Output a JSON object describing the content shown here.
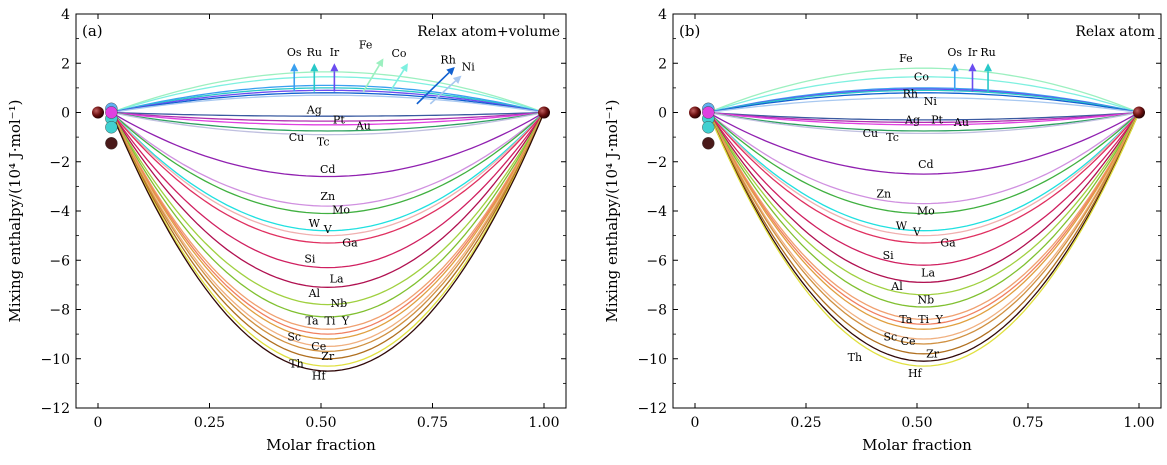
{
  "chart_data": [
    {
      "type": "line",
      "panel_label": "(a)",
      "annotation": "Relax atom+volume",
      "xlabel": "Molar fraction",
      "ylabel": "Mixing enthalpy/(10⁴ J·mol⁻¹)",
      "xlim": [
        0,
        1
      ],
      "ylim": [
        -12,
        4
      ],
      "xticks": [
        "0",
        "0.25",
        "0.50",
        "0.75",
        "1.00"
      ],
      "yticks": [
        "−12",
        "−10",
        "−8",
        "−6",
        "−4",
        "−2",
        "0",
        "2",
        "4"
      ],
      "grid": false,
      "series": [
        {
          "name": "Fe",
          "min": 1.65,
          "color": "#9cf0c0"
        },
        {
          "name": "Co",
          "min": 1.45,
          "color": "#7ef0e0"
        },
        {
          "name": "Os",
          "min": 1.1,
          "color": "#3aa0f0"
        },
        {
          "name": "Ru",
          "min": 1.0,
          "color": "#28c8c8"
        },
        {
          "name": "Ir",
          "min": 0.9,
          "color": "#6a4cf0"
        },
        {
          "name": "Rh",
          "min": 0.8,
          "color": "#1060d0"
        },
        {
          "name": "Ni",
          "min": 0.7,
          "color": "#a8c8f0"
        },
        {
          "name": "Ag",
          "min": -0.15,
          "color": "#3a5aa0"
        },
        {
          "name": "Pt",
          "min": -0.35,
          "color": "#b030b0"
        },
        {
          "name": "Au",
          "min": -0.5,
          "color": "#e040e0"
        },
        {
          "name": "Cu",
          "min": -0.75,
          "color": "#2ea060"
        },
        {
          "name": "Tc",
          "min": -0.9,
          "color": "#c0c0e0"
        },
        {
          "name": "Cd",
          "min": -2.6,
          "color": "#9020b0"
        },
        {
          "name": "Zn",
          "min": -3.8,
          "color": "#d090e0"
        },
        {
          "name": "Mo",
          "min": -4.1,
          "color": "#40b040"
        },
        {
          "name": "W",
          "min": -4.8,
          "color": "#20e0e0"
        },
        {
          "name": "V",
          "min": -5.0,
          "color": "#f0b0b0"
        },
        {
          "name": "Ga",
          "min": -5.3,
          "color": "#e03060"
        },
        {
          "name": "Si",
          "min": -6.3,
          "color": "#d02060"
        },
        {
          "name": "La",
          "min": -7.1,
          "color": "#b01050"
        },
        {
          "name": "Al",
          "min": -7.8,
          "color": "#a0d040"
        },
        {
          "name": "Nb",
          "min": -8.3,
          "color": "#80c030"
        },
        {
          "name": "Ta",
          "min": -8.8,
          "color": "#f0a070"
        },
        {
          "name": "Ti",
          "min": -9.0,
          "color": "#f08060"
        },
        {
          "name": "Y",
          "min": -9.2,
          "color": "#e0a040"
        },
        {
          "name": "Sc",
          "min": -9.5,
          "color": "#f0b080"
        },
        {
          "name": "Ce",
          "min": -9.7,
          "color": "#d09040"
        },
        {
          "name": "Zr",
          "min": -10.0,
          "color": "#b07020"
        },
        {
          "name": "Th",
          "min": -10.3,
          "color": "#e0e040"
        },
        {
          "name": "Hf",
          "min": -10.5,
          "color": "#300808"
        }
      ],
      "labels": [
        {
          "text": "Os",
          "x": 0.44,
          "y": 2.3
        },
        {
          "text": "Ru",
          "x": 0.485,
          "y": 2.3
        },
        {
          "text": "Ir",
          "x": 0.53,
          "y": 2.3
        },
        {
          "text": "Fe",
          "x": 0.6,
          "y": 2.6
        },
        {
          "text": "Co",
          "x": 0.675,
          "y": 2.25
        },
        {
          "text": "Rh",
          "x": 0.785,
          "y": 2.0
        },
        {
          "text": "Ni",
          "x": 0.83,
          "y": 1.7
        },
        {
          "text": "Ag",
          "x": 0.485,
          "y": -0.05
        },
        {
          "text": "Pt",
          "x": 0.54,
          "y": -0.45
        },
        {
          "text": "Au",
          "x": 0.595,
          "y": -0.7
        },
        {
          "text": "Cu",
          "x": 0.445,
          "y": -1.15
        },
        {
          "text": "Tc",
          "x": 0.505,
          "y": -1.35
        },
        {
          "text": "Cd",
          "x": 0.515,
          "y": -2.45
        },
        {
          "text": "Zn",
          "x": 0.515,
          "y": -3.55
        },
        {
          "text": "Mo",
          "x": 0.545,
          "y": -4.1
        },
        {
          "text": "W",
          "x": 0.485,
          "y": -4.65
        },
        {
          "text": "V",
          "x": 0.515,
          "y": -4.9
        },
        {
          "text": "Ga",
          "x": 0.565,
          "y": -5.45
        },
        {
          "text": "Si",
          "x": 0.475,
          "y": -6.1
        },
        {
          "text": "La",
          "x": 0.535,
          "y": -6.9
        },
        {
          "text": "Al",
          "x": 0.485,
          "y": -7.5
        },
        {
          "text": "Nb",
          "x": 0.54,
          "y": -7.9
        },
        {
          "text": "Ta",
          "x": 0.48,
          "y": -8.6
        },
        {
          "text": "Ti",
          "x": 0.52,
          "y": -8.6
        },
        {
          "text": "Y",
          "x": 0.555,
          "y": -8.6
        },
        {
          "text": "Sc",
          "x": 0.44,
          "y": -9.25
        },
        {
          "text": "Ce",
          "x": 0.495,
          "y": -9.65
        },
        {
          "text": "Zr",
          "x": 0.515,
          "y": -10.05
        },
        {
          "text": "Th",
          "x": 0.445,
          "y": -10.35
        },
        {
          "text": "Hf",
          "x": 0.495,
          "y": -10.85
        }
      ],
      "arrows": [
        {
          "x": 0.44,
          "y0": 0.85,
          "y1": 2.0,
          "color": "#3aa0f0"
        },
        {
          "x": 0.485,
          "y0": 0.85,
          "y1": 2.0,
          "color": "#28c8c8"
        },
        {
          "x": 0.53,
          "y0": 0.85,
          "y1": 2.0,
          "color": "#6a4cf0"
        },
        {
          "x0": 0.595,
          "y0": 0.85,
          "x1": 0.64,
          "y1": 2.2,
          "color": "#9cf0c0"
        },
        {
          "x0": 0.655,
          "y0": 0.85,
          "x1": 0.695,
          "y1": 2.0,
          "color": "#7ef0e0"
        },
        {
          "x0": 0.715,
          "y0": 0.35,
          "x1": 0.8,
          "y1": 1.85,
          "color": "#1060d0"
        },
        {
          "x0": 0.745,
          "y0": 0.35,
          "x1": 0.815,
          "y1": 1.5,
          "color": "#a8c8f0"
        }
      ]
    },
    {
      "type": "line",
      "panel_label": "(b)",
      "annotation": "Relax atom",
      "xlabel": "Molar fraction",
      "ylabel": "Mixing enthalpy/(10⁴ J·mol⁻¹)",
      "xlim": [
        0,
        1
      ],
      "ylim": [
        -12,
        4
      ],
      "xticks": [
        "0",
        "0.25",
        "0.50",
        "0.75",
        "1.00"
      ],
      "yticks": [
        "−12",
        "−10",
        "−8",
        "−6",
        "−4",
        "−2",
        "0",
        "2",
        "4"
      ],
      "grid": false,
      "series": [
        {
          "name": "Fe",
          "min": 1.8,
          "color": "#9cf0c0"
        },
        {
          "name": "Co",
          "min": 1.45,
          "color": "#7ef0e0"
        },
        {
          "name": "Os",
          "min": 1.0,
          "color": "#3aa0f0"
        },
        {
          "name": "Ir",
          "min": 0.95,
          "color": "#6a4cf0"
        },
        {
          "name": "Ru",
          "min": 0.9,
          "color": "#28c8c8"
        },
        {
          "name": "Rh",
          "min": 0.8,
          "color": "#1060d0"
        },
        {
          "name": "Ni",
          "min": 0.6,
          "color": "#a8c8f0"
        },
        {
          "name": "Ag",
          "min": -0.3,
          "color": "#3a5aa0"
        },
        {
          "name": "Pt",
          "min": -0.4,
          "color": "#b030b0"
        },
        {
          "name": "Au",
          "min": -0.5,
          "color": "#e040e0"
        },
        {
          "name": "Cu",
          "min": -0.75,
          "color": "#2ea060"
        },
        {
          "name": "Tc",
          "min": -0.85,
          "color": "#c0c0e0"
        },
        {
          "name": "Cd",
          "min": -2.5,
          "color": "#9020b0"
        },
        {
          "name": "Zn",
          "min": -3.7,
          "color": "#d090e0"
        },
        {
          "name": "Mo",
          "min": -4.1,
          "color": "#40b040"
        },
        {
          "name": "W",
          "min": -4.8,
          "color": "#20e0e0"
        },
        {
          "name": "V",
          "min": -5.0,
          "color": "#f0b0b0"
        },
        {
          "name": "Ga",
          "min": -5.3,
          "color": "#e03060"
        },
        {
          "name": "Si",
          "min": -6.2,
          "color": "#d02060"
        },
        {
          "name": "La",
          "min": -6.9,
          "color": "#b01050"
        },
        {
          "name": "Al",
          "min": -7.4,
          "color": "#a0d040"
        },
        {
          "name": "Nb",
          "min": -7.9,
          "color": "#80c030"
        },
        {
          "name": "Ta",
          "min": -8.4,
          "color": "#f0a070"
        },
        {
          "name": "Ti",
          "min": -8.6,
          "color": "#f08060"
        },
        {
          "name": "Y",
          "min": -8.8,
          "color": "#e0a040"
        },
        {
          "name": "Sc",
          "min": -9.2,
          "color": "#f0b080"
        },
        {
          "name": "Ce",
          "min": -9.4,
          "color": "#d09040"
        },
        {
          "name": "Zr",
          "min": -9.8,
          "color": "#b07020"
        },
        {
          "name": "Th",
          "min": -10.1,
          "color": "#300808"
        },
        {
          "name": "Hf",
          "min": -10.3,
          "color": "#e0e040"
        }
      ],
      "labels": [
        {
          "text": "Fe",
          "x": 0.475,
          "y": 2.05
        },
        {
          "text": "Co",
          "x": 0.51,
          "y": 1.3
        },
        {
          "text": "Os",
          "x": 0.585,
          "y": 2.3
        },
        {
          "text": "Ir",
          "x": 0.625,
          "y": 2.3
        },
        {
          "text": "Ru",
          "x": 0.66,
          "y": 2.3
        },
        {
          "text": "Rh",
          "x": 0.485,
          "y": 0.6
        },
        {
          "text": "Ni",
          "x": 0.53,
          "y": 0.3
        },
        {
          "text": "Ag",
          "x": 0.49,
          "y": -0.45
        },
        {
          "text": "Pt",
          "x": 0.545,
          "y": -0.45
        },
        {
          "text": "Au",
          "x": 0.6,
          "y": -0.55
        },
        {
          "text": "Cu",
          "x": 0.395,
          "y": -1.0
        },
        {
          "text": "Tc",
          "x": 0.445,
          "y": -1.15
        },
        {
          "text": "Cd",
          "x": 0.52,
          "y": -2.25
        },
        {
          "text": "Zn",
          "x": 0.425,
          "y": -3.45
        },
        {
          "text": "Mo",
          "x": 0.52,
          "y": -4.15
        },
        {
          "text": "W",
          "x": 0.465,
          "y": -4.75
        },
        {
          "text": "V",
          "x": 0.5,
          "y": -5.0
        },
        {
          "text": "Ga",
          "x": 0.57,
          "y": -5.45
        },
        {
          "text": "Si",
          "x": 0.435,
          "y": -5.95
        },
        {
          "text": "La",
          "x": 0.525,
          "y": -6.65
        },
        {
          "text": "Al",
          "x": 0.455,
          "y": -7.2
        },
        {
          "text": "Nb",
          "x": 0.52,
          "y": -7.75
        },
        {
          "text": "Ta",
          "x": 0.475,
          "y": -8.55
        },
        {
          "text": "Ti",
          "x": 0.515,
          "y": -8.55
        },
        {
          "text": "Y",
          "x": 0.55,
          "y": -8.55
        },
        {
          "text": "Sc",
          "x": 0.44,
          "y": -9.25
        },
        {
          "text": "Ce",
          "x": 0.48,
          "y": -9.45
        },
        {
          "text": "Zr",
          "x": 0.535,
          "y": -9.95
        },
        {
          "text": "Th",
          "x": 0.36,
          "y": -10.1
        },
        {
          "text": "Hf",
          "x": 0.495,
          "y": -10.75
        }
      ],
      "arrows": [
        {
          "x": 0.585,
          "y0": 0.85,
          "y1": 2.0,
          "color": "#3aa0f0"
        },
        {
          "x": 0.625,
          "y0": 0.85,
          "y1": 2.0,
          "color": "#6a4cf0"
        },
        {
          "x": 0.66,
          "y0": 0.85,
          "y1": 2.0,
          "color": "#28c8c8"
        }
      ]
    }
  ],
  "markers": {
    "endpoint_color": "#6b0f0f",
    "cluster_colors": [
      "#60b0f0",
      "#40d0d0",
      "#e040e0",
      "#4a1a1a"
    ]
  }
}
